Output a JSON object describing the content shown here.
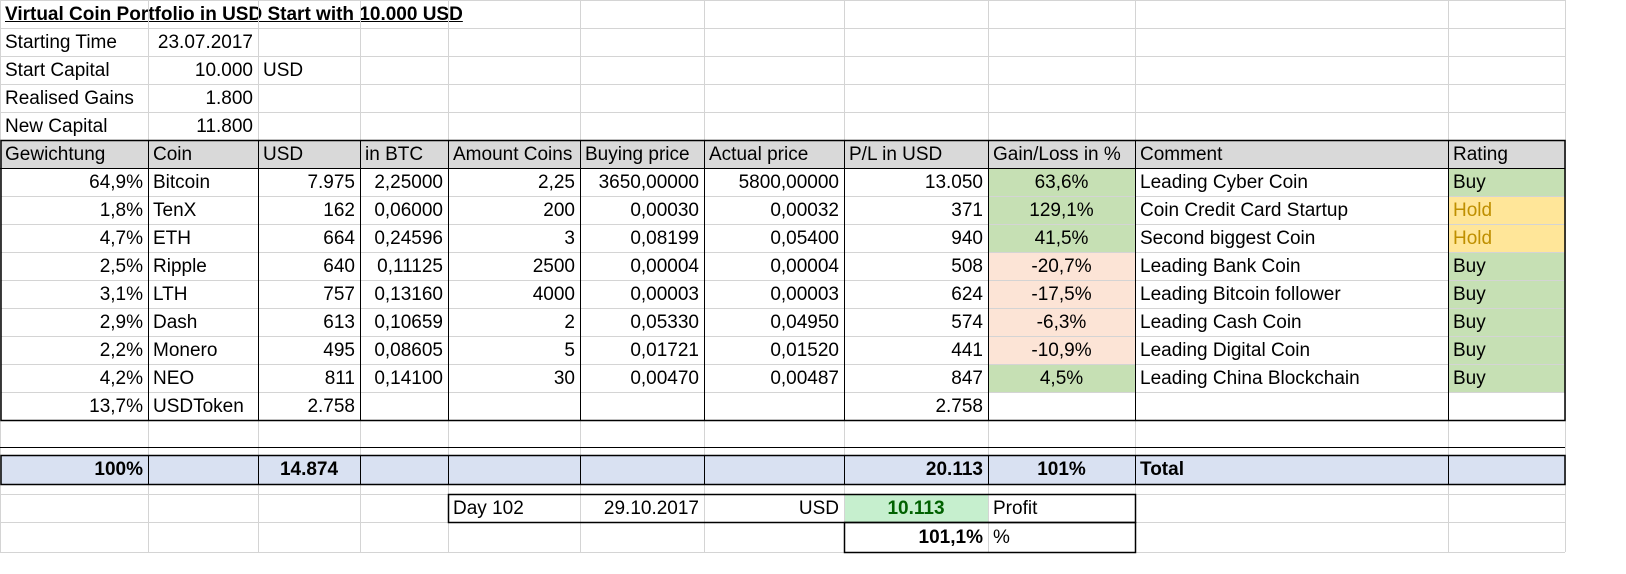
{
  "title": "Virtual Coin Portfolio in USD Start with 10.000 USD",
  "summary": [
    {
      "label": "Starting Time",
      "value": "23.07.2017",
      "unit": ""
    },
    {
      "label": "Start Capital",
      "value": "10.000",
      "unit": "USD"
    },
    {
      "label": "Realised Gains",
      "value": "1.800",
      "unit": ""
    },
    {
      "label": "New Capital",
      "value": "11.800",
      "unit": ""
    }
  ],
  "headers": [
    "Gewichtung",
    "Coin",
    "USD",
    "in BTC",
    "Amount Coins",
    "Buying price",
    "Actual price",
    "P/L in USD",
    "Gain/Loss in %",
    "Comment",
    "Rating"
  ],
  "rows": [
    {
      "weight": "64,9%",
      "coin": "Bitcoin",
      "usd": "7.975",
      "btc": "2,25000",
      "amount": "2,25",
      "buy": "3650,00000",
      "actual": "5800,00000",
      "pl": "13.050",
      "gain": "63,6%",
      "gain_state": "positive",
      "comment": "Leading Cyber Coin",
      "rating": "Buy"
    },
    {
      "weight": "1,8%",
      "coin": "TenX",
      "usd": "162",
      "btc": "0,06000",
      "amount": "200",
      "buy": "0,00030",
      "actual": "0,00032",
      "pl": "371",
      "gain": "129,1%",
      "gain_state": "positive",
      "comment": "Coin Credit Card Startup",
      "rating": "Hold"
    },
    {
      "weight": "4,7%",
      "coin": "ETH",
      "usd": "664",
      "btc": "0,24596",
      "amount": "3",
      "buy": "0,08199",
      "actual": "0,05400",
      "pl": "940",
      "gain": "41,5%",
      "gain_state": "positive",
      "comment": "Second biggest Coin",
      "rating": "Hold"
    },
    {
      "weight": "2,5%",
      "coin": "Ripple",
      "usd": "640",
      "btc": "0,11125",
      "amount": "2500",
      "buy": "0,00004",
      "actual": "0,00004",
      "pl": "508",
      "gain": "-20,7%",
      "gain_state": "negative",
      "comment": "Leading Bank Coin",
      "rating": "Buy"
    },
    {
      "weight": "3,1%",
      "coin": "LTH",
      "usd": "757",
      "btc": "0,13160",
      "amount": "4000",
      "buy": "0,00003",
      "actual": "0,00003",
      "pl": "624",
      "gain": "-17,5%",
      "gain_state": "negative",
      "comment": "Leading Bitcoin follower",
      "rating": "Buy"
    },
    {
      "weight": "2,9%",
      "coin": "Dash",
      "usd": "613",
      "btc": "0,10659",
      "amount": "2",
      "buy": "0,05330",
      "actual": "0,04950",
      "pl": "574",
      "gain": "-6,3%",
      "gain_state": "negative",
      "comment": "Leading Cash Coin",
      "rating": "Buy"
    },
    {
      "weight": "2,2%",
      "coin": "Monero",
      "usd": "495",
      "btc": "0,08605",
      "amount": "5",
      "buy": "0,01721",
      "actual": "0,01520",
      "pl": "441",
      "gain": "-10,9%",
      "gain_state": "negative",
      "comment": "Leading Digital Coin",
      "rating": "Buy"
    },
    {
      "weight": "4,2%",
      "coin": "NEO",
      "usd": "811",
      "btc": "0,14100",
      "amount": "30",
      "buy": "0,00470",
      "actual": "0,00487",
      "pl": "847",
      "gain": "4,5%",
      "gain_state": "positive",
      "comment": "Leading China Blockchain",
      "rating": "Buy"
    },
    {
      "weight": "13,7%",
      "coin": "USDToken",
      "usd": "2.758",
      "btc": "",
      "amount": "",
      "buy": "",
      "actual": "",
      "pl": "2.758",
      "gain": "",
      "gain_state": "none",
      "comment": "",
      "rating": ""
    }
  ],
  "total": {
    "weight": "100%",
    "usd": "14.874",
    "pl": "20.113",
    "gain": "101%",
    "label": "Total"
  },
  "result": {
    "day": "Day 102",
    "date": "29.10.2017",
    "currency": "USD",
    "profit": "10.113",
    "profit_label": "Profit",
    "percent": "101,1%",
    "percent_unit": "%"
  },
  "colors": {
    "header_bg": "#d9d9d9",
    "total_bg": "#d9e1f2",
    "gain_bg": "#c6e0b4",
    "loss_bg": "#fce4d6",
    "hold_bg": "#ffe699",
    "hold_text": "#bf8f00",
    "profit_bg": "#c6efce",
    "profit_text": "#006100",
    "gridline": "#d4d4d4"
  }
}
